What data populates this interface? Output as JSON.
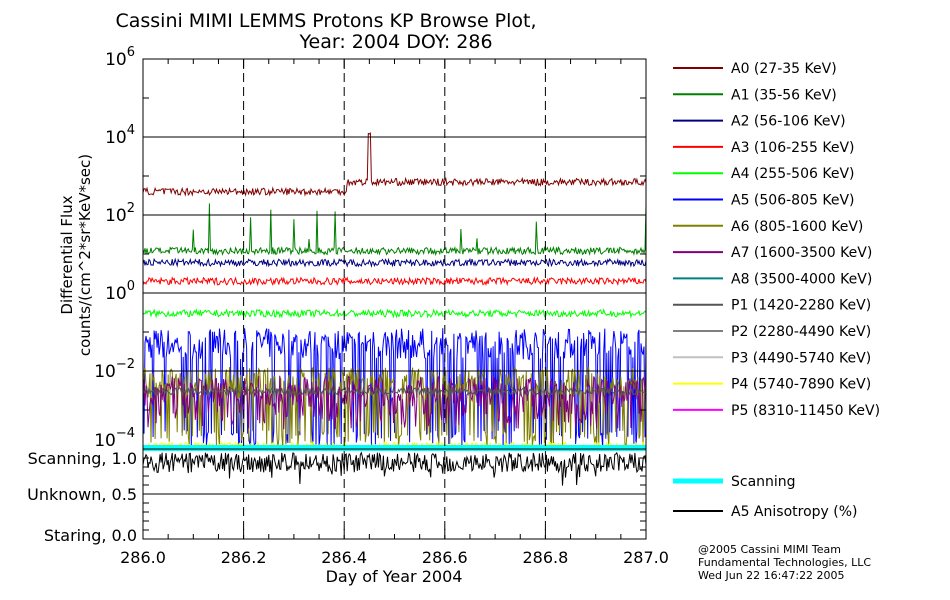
{
  "chart_data": {
    "type": "line",
    "title": "Cassini MIMI LEMMS Protons KP Browse Plot,",
    "subtitle": "Year: 2004 DOY: 286",
    "xlabel": "Day of Year 2004",
    "ylabel_line1": "Differential Flux",
    "ylabel_line2": "counts/(cm^2*sr*KeV*sec)",
    "xlim": [
      286.0,
      287.0
    ],
    "xticks": [
      "286.0",
      "286.2",
      "286.4",
      "286.6",
      "286.8",
      "287.0"
    ],
    "ylim_log": [
      -4,
      6
    ],
    "yticks": [
      {
        "base": "10",
        "exp": "6"
      },
      {
        "base": "10",
        "exp": "4"
      },
      {
        "base": "10",
        "exp": "2"
      },
      {
        "base": "10",
        "exp": "0"
      },
      {
        "base": "10",
        "exp": "−2"
      },
      {
        "base": "10",
        "exp": "−4"
      }
    ],
    "lower_yticks": [
      "Scanning, 1.0",
      "Unknown, 0.5",
      "Staring, 0.0"
    ],
    "grid": true,
    "legend_placement": "right",
    "series": [
      {
        "name": "A0 (27-35 KeV)",
        "color": "#800000",
        "level": 400,
        "level_after_286_4": 700,
        "spike": {
          "x": 286.45,
          "y": 15000
        }
      },
      {
        "name": "A1 (35-56 KeV)",
        "color": "#008000",
        "level": 12,
        "spike_max": 200
      },
      {
        "name": "A2 (56-106 KeV)",
        "color": "#000080",
        "level": 6
      },
      {
        "name": "A3 (106-255 KeV)",
        "color": "#ff0000",
        "level": 2
      },
      {
        "name": "A4 (255-506 KeV)",
        "color": "#00ff00",
        "level": 0.3
      },
      {
        "name": "A5 (506-805 KeV)",
        "color": "#0000ff",
        "level": 0.05,
        "min": 0.0001
      },
      {
        "name": "A6 (805-1600 KeV)",
        "color": "#808000",
        "level": 0.005,
        "min": 0.0001
      },
      {
        "name": "A7 (1600-3500 KeV)",
        "color": "#800080",
        "level": 0.003,
        "min": 0.0003
      },
      {
        "name": "A8 (3500-4000 KeV)",
        "color": "#008080",
        "level": null
      },
      {
        "name": "P1 (1420-2280 KeV)",
        "color": "#555555",
        "level": 0.003
      },
      {
        "name": "P2 (2280-4490 KeV)",
        "color": "#808080",
        "level": null
      },
      {
        "name": "P3 (4490-5740 KeV)",
        "color": "#c0c0c0",
        "level": null
      },
      {
        "name": "P4 (5740-7890 KeV)",
        "color": "#ffff00",
        "level": 0.00012
      },
      {
        "name": "P5 (8310-11450 KeV)",
        "color": "#ff00ff",
        "level": null
      }
    ],
    "lower_series": [
      {
        "name": "Scanning",
        "color": "#00ffff",
        "level": 1.0
      },
      {
        "name": "A5 Anisotropy (%)",
        "color": "#000000",
        "level": 0.85
      }
    ]
  },
  "credits": [
    "@2005 Cassini MIMI Team",
    "Fundamental Technologies, LLC",
    "Wed Jun 22 16:47:22 2005"
  ]
}
